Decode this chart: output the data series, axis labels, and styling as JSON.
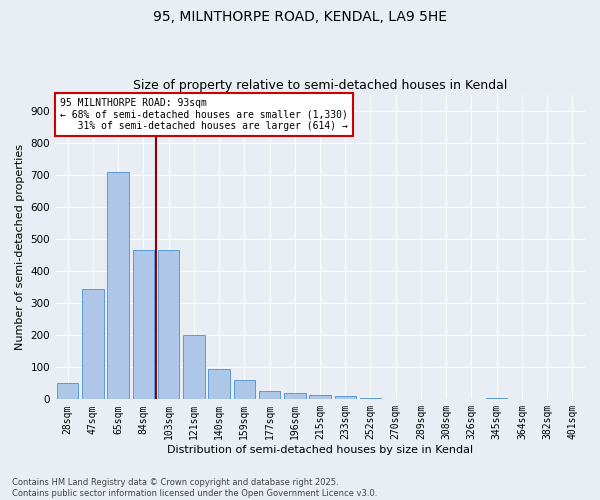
{
  "title1": "95, MILNTHORPE ROAD, KENDAL, LA9 5HE",
  "title2": "Size of property relative to semi-detached houses in Kendal",
  "xlabel": "Distribution of semi-detached houses by size in Kendal",
  "ylabel": "Number of semi-detached properties",
  "categories": [
    "28sqm",
    "47sqm",
    "65sqm",
    "84sqm",
    "103sqm",
    "121sqm",
    "140sqm",
    "159sqm",
    "177sqm",
    "196sqm",
    "215sqm",
    "233sqm",
    "252sqm",
    "270sqm",
    "289sqm",
    "308sqm",
    "326sqm",
    "345sqm",
    "364sqm",
    "382sqm",
    "401sqm"
  ],
  "values": [
    50,
    345,
    710,
    465,
    465,
    200,
    95,
    60,
    25,
    20,
    15,
    10,
    5,
    0,
    0,
    0,
    0,
    5,
    0,
    0,
    0
  ],
  "bar_color": "#aec6e8",
  "bar_edge_color": "#5b9bd5",
  "background_color": "#e8eef4",
  "vline_color": "#8b0000",
  "annotation_text": "95 MILNTHORPE ROAD: 93sqm\n← 68% of semi-detached houses are smaller (1,330)\n   31% of semi-detached houses are larger (614) →",
  "annotation_box_color": "#ffffff",
  "annotation_edge_color": "#cc0000",
  "ylim": [
    0,
    950
  ],
  "yticks": [
    0,
    100,
    200,
    300,
    400,
    500,
    600,
    700,
    800,
    900
  ],
  "footer": "Contains HM Land Registry data © Crown copyright and database right 2025.\nContains public sector information licensed under the Open Government Licence v3.0.",
  "grid_color": "#ffffff",
  "title_fontsize": 10,
  "subtitle_fontsize": 9,
  "tick_fontsize": 7,
  "ylabel_fontsize": 8,
  "xlabel_fontsize": 8,
  "footer_fontsize": 6,
  "annot_fontsize": 7
}
